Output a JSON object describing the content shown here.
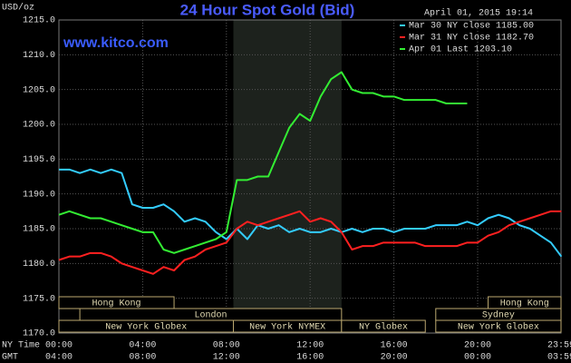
{
  "chart_data": {
    "type": "line",
    "title": "24 Hour Spot Gold (Bid)",
    "subtitle": "www.kitco.com",
    "timestamp": "April 01, 2015 19:14",
    "ylabel": "USD/oz",
    "xlabel": "NY Time",
    "x2label": "GMT",
    "xlim": [
      0,
      23.983
    ],
    "xticks": [
      {
        "value": 0,
        "label": "00:00"
      },
      {
        "value": 4,
        "label": "04:00"
      },
      {
        "value": 8,
        "label": "08:00"
      },
      {
        "value": 12,
        "label": "12:00"
      },
      {
        "value": 16,
        "label": "16:00"
      },
      {
        "value": 20,
        "label": "20:00"
      },
      {
        "value": 23.983,
        "label": "23:59"
      }
    ],
    "x2ticks": [
      "04:00",
      "08:00",
      "12:00",
      "16:00",
      "20:00",
      "00:00",
      "03:59"
    ],
    "ylim": [
      1170,
      1215
    ],
    "yticks": [
      {
        "value": 1170,
        "label": "1170.0"
      },
      {
        "value": 1175,
        "label": "1175.0"
      },
      {
        "value": 1180,
        "label": "1180.0"
      },
      {
        "value": 1185,
        "label": "1185.0"
      },
      {
        "value": 1190,
        "label": "1190.0"
      },
      {
        "value": 1195,
        "label": "1195.0"
      },
      {
        "value": 1200,
        "label": "1200.0"
      },
      {
        "value": 1205,
        "label": "1205.0"
      },
      {
        "value": 1210,
        "label": "1210.0"
      },
      {
        "value": 1215,
        "label": "1215.0"
      }
    ],
    "grid": true,
    "shaded_span": [
      8.333,
      13.5
    ],
    "sessions": [
      {
        "name": "Hong Kong",
        "row": 0,
        "start": 0,
        "end": 5.5
      },
      {
        "name": "Hong Kong",
        "row": 0,
        "start": 20.5,
        "end": 23.983
      },
      {
        "name": "London",
        "row": 1,
        "start": 1,
        "end": 13.5
      },
      {
        "name": "Sydney",
        "row": 1,
        "start": 18,
        "end": 23.983
      },
      {
        "name": "New York Globex",
        "row": 2,
        "start": 0,
        "end": 8.333
      },
      {
        "name": "New York NYMEX",
        "row": 2,
        "start": 8.333,
        "end": 13.5
      },
      {
        "name": "NY Globex",
        "row": 2,
        "start": 13.5,
        "end": 17.5
      },
      {
        "name": "New York Globex",
        "row": 2,
        "start": 18,
        "end": 23.983
      }
    ],
    "x": [
      0,
      0.5,
      1,
      1.5,
      2,
      2.5,
      3,
      3.5,
      4,
      4.5,
      5,
      5.5,
      6,
      6.5,
      7,
      7.5,
      8,
      8.5,
      9,
      9.5,
      10,
      10.5,
      11,
      11.5,
      12,
      12.5,
      13,
      13.5,
      14,
      14.5,
      15,
      15.5,
      16,
      16.5,
      17,
      17.5,
      18,
      18.5,
      19,
      19.5,
      20,
      20.5,
      21,
      21.5,
      22,
      22.5,
      23,
      23.5,
      24
    ],
    "series": [
      {
        "name": "Mar 30 NY close 1185.00",
        "color": "#33ccff",
        "values": [
          1193.5,
          1193.5,
          1193,
          1193.5,
          1193,
          1193.5,
          1193,
          1188.5,
          1188,
          1188,
          1188.5,
          1187.5,
          1186,
          1186.5,
          1186,
          1184.5,
          1183.5,
          1185,
          1183.5,
          1185.5,
          1185,
          1185.5,
          1184.5,
          1185,
          1184.5,
          1184.5,
          1185,
          1184.5,
          1185,
          1184.5,
          1185,
          1185,
          1184.5,
          1185,
          1185,
          1185,
          1185.5,
          1185.5,
          1185.5,
          1186,
          1185.5,
          1186.5,
          1187,
          1186.5,
          1185.5,
          1185,
          1184,
          1183,
          1181
        ]
      },
      {
        "name": "Mar 31 NY close 1182.70",
        "color": "#ff2020",
        "values": [
          1180.5,
          1181,
          1181,
          1181.5,
          1181.5,
          1181,
          1180,
          1179.5,
          1179,
          1178.5,
          1179.5,
          1179,
          1180.5,
          1181,
          1182,
          1182.5,
          1183,
          1185,
          1186,
          1185.5,
          1186,
          1186.5,
          1187,
          1187.5,
          1186,
          1186.5,
          1186,
          1184.5,
          1182,
          1182.5,
          1182.5,
          1183,
          1183,
          1183,
          1183,
          1182.5,
          1182.5,
          1182.5,
          1182.5,
          1183,
          1183,
          1184,
          1184.5,
          1185.5,
          1186,
          1186.5,
          1187,
          1187.5,
          1187.5
        ]
      },
      {
        "name": "Apr 01 Last 1203.10",
        "color": "#33ee33",
        "values": [
          1187,
          1187.5,
          1187,
          1186.5,
          1186.5,
          1186,
          1185.5,
          1185,
          1184.5,
          1184.5,
          1182,
          1181.5,
          1182,
          1182.5,
          1183,
          1183.5,
          1184.5,
          1192,
          1192,
          1192.5,
          1192.5,
          1196,
          1199.5,
          1201.5,
          1200.5,
          1204,
          1206.5,
          1207.5,
          1205,
          1204.5,
          1204.5,
          1204,
          1204,
          1203.5,
          1203.5,
          1203.5,
          1203.5,
          1203,
          1203,
          1203,
          null,
          null,
          null,
          null,
          null,
          null,
          null,
          null,
          null
        ]
      }
    ]
  }
}
